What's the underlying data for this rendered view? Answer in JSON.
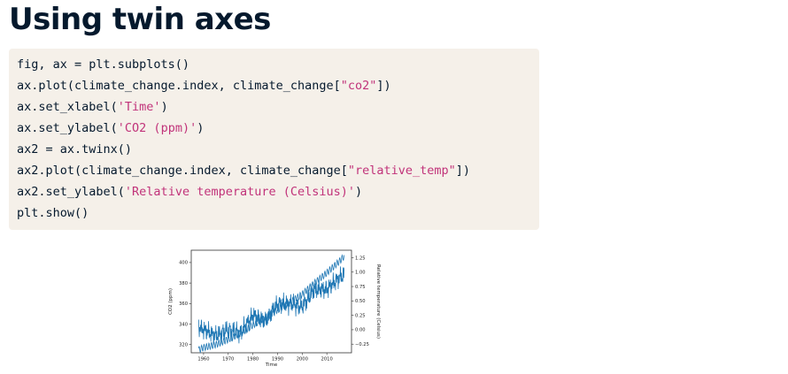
{
  "page": {
    "title": "Using twin axes"
  },
  "code": {
    "lines": [
      [
        {
          "t": "fig, ax = plt.subplots()"
        }
      ],
      [
        {
          "t": "ax.plot(climate_change.index, climate_change["
        },
        {
          "t": "\"co2\"",
          "s": true
        },
        {
          "t": "])"
        }
      ],
      [
        {
          "t": "ax.set_xlabel("
        },
        {
          "t": "'Time'",
          "s": true
        },
        {
          "t": ")"
        }
      ],
      [
        {
          "t": "ax.set_ylabel("
        },
        {
          "t": "'CO2 (ppm)'",
          "s": true
        },
        {
          "t": ")"
        }
      ],
      [
        {
          "t": "ax2 = ax.twinx()"
        }
      ],
      [
        {
          "t": "ax2.plot(climate_change.index, climate_change["
        },
        {
          "t": "\"relative_temp\"",
          "s": true
        },
        {
          "t": "])"
        }
      ],
      [
        {
          "t": "ax2.set_ylabel("
        },
        {
          "t": "'Relative temperature (Celsius)'",
          "s": true
        },
        {
          "t": ")"
        }
      ],
      [
        {
          "t": "plt.show()"
        }
      ]
    ]
  },
  "colors": {
    "string": "#c1337a",
    "code_bg": "#f5f0e9",
    "title": "#05192d",
    "line": "#1f77b4"
  },
  "chart_data": {
    "type": "line",
    "xlabel": "Time",
    "ylabel_left": "CO2 (ppm)",
    "ylabel_right": "Relative temperature (Celsius)",
    "xlim": [
      1955,
      2020
    ],
    "ylim_left": [
      312,
      412
    ],
    "ylim_right": [
      -0.4,
      1.38
    ],
    "x_ticks": [
      "1960",
      "1970",
      "1980",
      "1990",
      "2000",
      "2010"
    ],
    "y_left_ticks": [
      "320",
      "340",
      "360",
      "380",
      "400"
    ],
    "y_right_ticks": [
      "−0.25",
      "0.00",
      "0.25",
      "0.50",
      "0.75",
      "1.00",
      "1.25"
    ],
    "grid": false,
    "series": [
      {
        "axis": "left",
        "x": [
          1958,
          1960,
          1965,
          1970,
          1975,
          1980,
          1985,
          1990,
          1995,
          2000,
          2005,
          2010,
          2015,
          2017
        ],
        "values": [
          315,
          317,
          320,
          325,
          331,
          339,
          346,
          354,
          361,
          369,
          380,
          390,
          401,
          406
        ]
      },
      {
        "axis": "right",
        "x": [
          1958,
          1960,
          1965,
          1970,
          1975,
          1980,
          1985,
          1990,
          1995,
          2000,
          2005,
          2010,
          2015,
          2017
        ],
        "values": [
          0.05,
          0.0,
          -0.1,
          0.0,
          -0.05,
          0.25,
          0.15,
          0.45,
          0.45,
          0.4,
          0.7,
          0.7,
          0.9,
          0.95
        ]
      }
    ]
  }
}
